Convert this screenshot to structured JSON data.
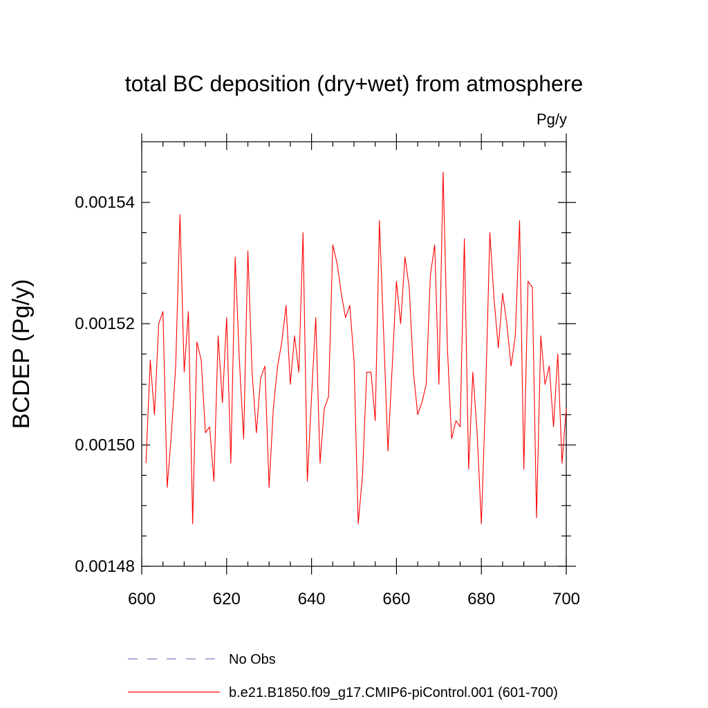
{
  "chart_data": {
    "type": "line",
    "title": "total BC deposition (dry+wet) from atmosphere",
    "units_label": "Pg/y",
    "xlabel": "",
    "ylabel": "BCDEP  (Pg/y)",
    "xlim": [
      600,
      700
    ],
    "ylim": [
      0.00148,
      0.00155
    ],
    "x_ticks": [
      600,
      620,
      640,
      660,
      680,
      700
    ],
    "x_tick_labels": [
      "600",
      "620",
      "640",
      "660",
      "680",
      "700"
    ],
    "y_ticks": [
      0.00148,
      0.0015,
      0.00152,
      0.00154
    ],
    "y_tick_labels": [
      "0.00148",
      "0.00150",
      "0.00152",
      "0.00154"
    ],
    "grid": false,
    "legend_position": "bottom",
    "series": [
      {
        "name": "b.e21.B1850.f09_g17.CMIP6-piControl.001 (601-700)",
        "color": "#ff0000",
        "style": "solid",
        "x": [
          601,
          602,
          603,
          604,
          605,
          606,
          607,
          608,
          609,
          610,
          611,
          612,
          613,
          614,
          615,
          616,
          617,
          618,
          619,
          620,
          621,
          622,
          623,
          624,
          625,
          626,
          627,
          628,
          629,
          630,
          631,
          632,
          633,
          634,
          635,
          636,
          637,
          638,
          639,
          640,
          641,
          642,
          643,
          644,
          645,
          646,
          647,
          648,
          649,
          650,
          651,
          652,
          653,
          654,
          655,
          656,
          657,
          658,
          659,
          660,
          661,
          662,
          663,
          664,
          665,
          666,
          667,
          668,
          669,
          670,
          671,
          672,
          673,
          674,
          675,
          676,
          677,
          678,
          679,
          680,
          681,
          682,
          683,
          684,
          685,
          686,
          687,
          688,
          689,
          690,
          691,
          692,
          693,
          694,
          695,
          696,
          697,
          698,
          699,
          700
        ],
        "values": [
          0.001497,
          0.001514,
          0.001505,
          0.00152,
          0.001522,
          0.001493,
          0.001502,
          0.001513,
          0.001538,
          0.001512,
          0.001522,
          0.001487,
          0.001517,
          0.001514,
          0.001502,
          0.001503,
          0.001494,
          0.001518,
          0.001507,
          0.001521,
          0.001497,
          0.001531,
          0.001514,
          0.001501,
          0.001532,
          0.001512,
          0.001502,
          0.001511,
          0.001513,
          0.001493,
          0.001506,
          0.001513,
          0.001517,
          0.001523,
          0.00151,
          0.001518,
          0.001512,
          0.001535,
          0.001494,
          0.001508,
          0.001521,
          0.001497,
          0.001506,
          0.001508,
          0.001533,
          0.00153,
          0.001525,
          0.001521,
          0.001523,
          0.001514,
          0.001487,
          0.001495,
          0.001512,
          0.001512,
          0.001504,
          0.001537,
          0.001518,
          0.001499,
          0.001513,
          0.001527,
          0.00152,
          0.001531,
          0.001526,
          0.001512,
          0.001505,
          0.001507,
          0.00151,
          0.001528,
          0.001533,
          0.00151,
          0.001545,
          0.001516,
          0.001501,
          0.001504,
          0.001503,
          0.001534,
          0.001496,
          0.001512,
          0.001502,
          0.001487,
          0.001508,
          0.001535,
          0.001524,
          0.001516,
          0.001525,
          0.00152,
          0.001513,
          0.001518,
          0.001537,
          0.001496,
          0.001527,
          0.001526,
          0.001488,
          0.001518,
          0.00151,
          0.001513,
          0.001503,
          0.001515,
          0.001497,
          0.001506
        ]
      },
      {
        "name": "No Obs",
        "color": "#8080c0",
        "style": "dashed",
        "x": [],
        "values": []
      }
    ]
  }
}
